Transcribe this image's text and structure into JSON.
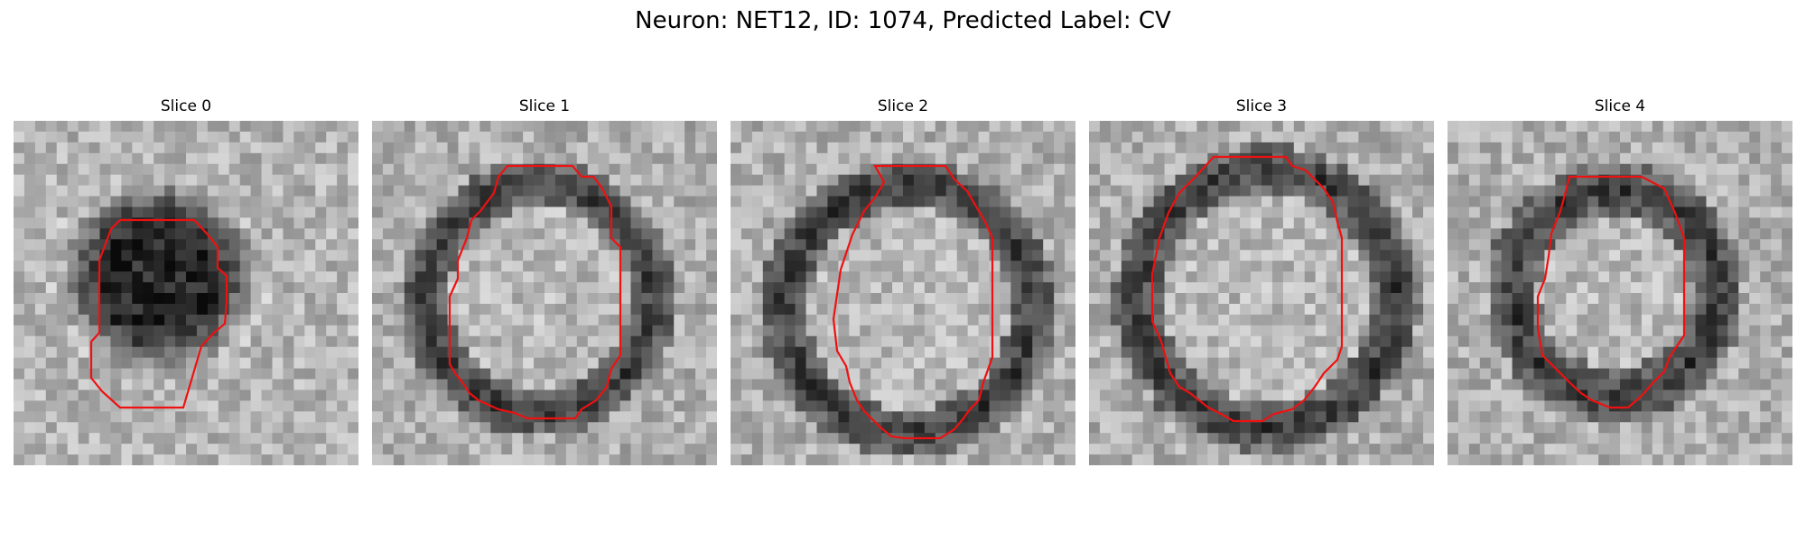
{
  "figure": {
    "title": "Neuron: NET12, ID: 1074, Predicted Label: CV",
    "contour_color": "#ee1111"
  },
  "panels": [
    {
      "title": "Slice 0",
      "membrane": "dark blob"
    },
    {
      "title": "Slice 1",
      "membrane": "ring"
    },
    {
      "title": "Slice 2",
      "membrane": "ring"
    },
    {
      "title": "Slice 3",
      "membrane": "ring"
    },
    {
      "title": "Slice 4",
      "membrane": "ring"
    }
  ]
}
